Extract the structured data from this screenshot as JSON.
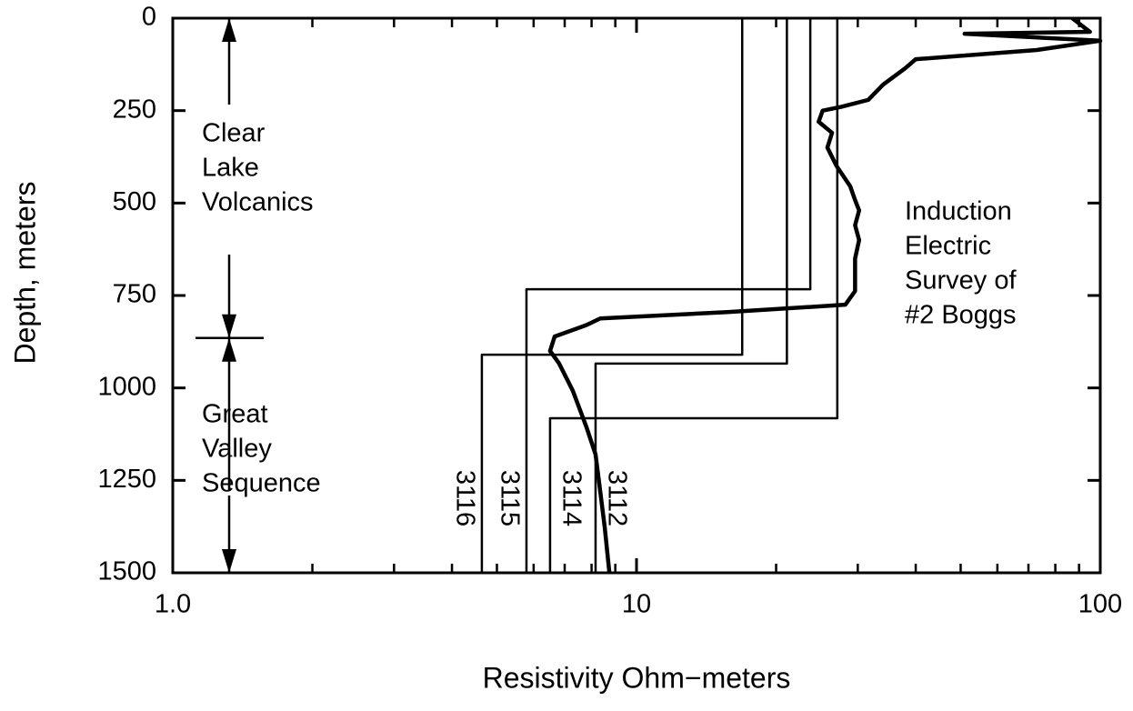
{
  "chart_data": {
    "type": "line",
    "xlabel": "Resistivity  Ohm−meters",
    "ylabel": "Depth, meters",
    "xscale": "log",
    "xlim": [
      1,
      100
    ],
    "xticks": [
      {
        "value": 1,
        "label": "1.0"
      },
      10,
      100
    ],
    "xminor_ticks": [
      2,
      3,
      4,
      5,
      6,
      7,
      8,
      9,
      20,
      30,
      40,
      50,
      60,
      70,
      80,
      90
    ],
    "ylim": [
      0,
      1500
    ],
    "y_inverted": true,
    "yticks": [
      0,
      250,
      500,
      750,
      1000,
      1250,
      1500
    ],
    "color": "#000000",
    "annotations": [
      {
        "lines": [
          "Clear",
          "Lake",
          "Volcanics"
        ],
        "boundary_depth": 865
      },
      {
        "lines": [
          "Great",
          "Valley",
          "Sequence"
        ]
      },
      {
        "lines": [
          "Induction",
          "Electric",
          "Survey  of",
          "#2 Boggs"
        ]
      }
    ],
    "series": [
      {
        "name": "3116",
        "x": [
          16.9,
          16.9,
          4.64,
          4.64
        ],
        "depth": [
          0,
          910,
          910,
          1500
        ]
      },
      {
        "name": "3115",
        "x": [
          23.7,
          23.7,
          5.79,
          5.79
        ],
        "depth": [
          0,
          733,
          733,
          1500
        ]
      },
      {
        "name": "3114",
        "x": [
          27.1,
          27.1,
          6.51,
          6.51
        ],
        "depth": [
          0,
          1082,
          1082,
          1500
        ]
      },
      {
        "name": "3112",
        "x": [
          21.1,
          21.1,
          8.16,
          8.16
        ],
        "depth": [
          0,
          934,
          934,
          1500
        ]
      },
      {
        "name": "Induction Electric Survey of #2 Boggs",
        "x": [
          87,
          95,
          51,
          100,
          73,
          40,
          38,
          34,
          31.6,
          27.6,
          25.2,
          24.7,
          26.4,
          25.8,
          27,
          28.9,
          29.6,
          30.2,
          29.6,
          30.2,
          29.6,
          29.6,
          28.2,
          15.7,
          8.35,
          7.8,
          6.66,
          6.51,
          6.81,
          7.29,
          7.8,
          8.16,
          8.35,
          8.54,
          8.74
        ],
        "depth": [
          0,
          37,
          42,
          61,
          86,
          111,
          135,
          180,
          221,
          240,
          250,
          280,
          310,
          350,
          400,
          455,
          492,
          520,
          560,
          600,
          650,
          738,
          775,
          795,
          812,
          830,
          861,
          900,
          934,
          1008,
          1106,
          1180,
          1279,
          1377,
          1500
        ]
      }
    ]
  }
}
